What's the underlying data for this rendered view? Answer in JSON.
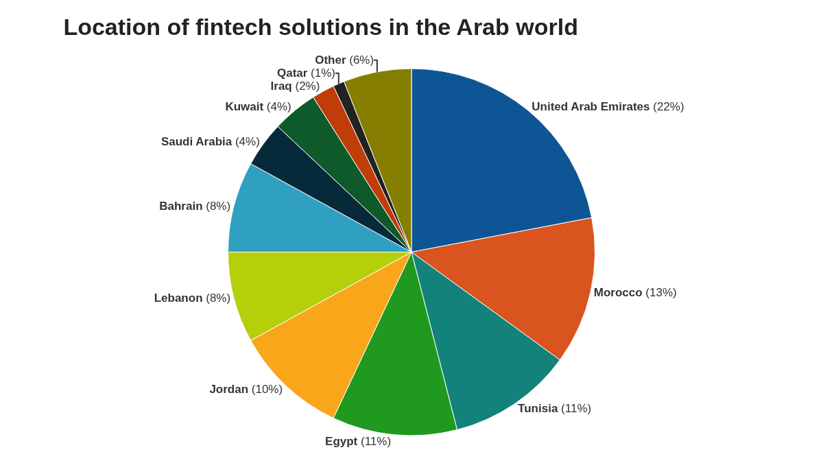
{
  "chart_data": {
    "type": "pie",
    "title": "Location of fintech solutions in the Arab world",
    "categories": [
      "United Arab Emirates",
      "Morocco",
      "Tunisia",
      "Egypt",
      "Jordan",
      "Lebanon",
      "Bahrain",
      "Saudi Arabia",
      "Kuwait",
      "Iraq",
      "Qatar",
      "Other"
    ],
    "values": [
      22,
      13,
      11,
      11,
      10,
      8,
      8,
      4,
      4,
      2,
      1,
      6
    ],
    "value_labels": [
      "(22%)",
      "(13%)",
      "(11%)",
      "(11%)",
      "(10%)",
      "(8%)",
      "(8%)",
      "(4%)",
      "(4%)",
      "(2%)",
      "(1%)",
      "(6%)"
    ],
    "colors": [
      "#0e5596",
      "#d9541e",
      "#13827a",
      "#20991f",
      "#f9a61a",
      "#b5cf0a",
      "#30a0c0",
      "#062a3a",
      "#0e5a2a",
      "#c03c08",
      "#222222",
      "#857e00"
    ],
    "legend": false
  }
}
